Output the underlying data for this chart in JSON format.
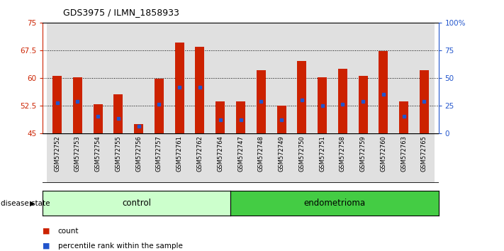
{
  "title": "GDS3975 / ILMN_1858933",
  "samples": [
    "GSM572752",
    "GSM572753",
    "GSM572754",
    "GSM572755",
    "GSM572756",
    "GSM572757",
    "GSM572761",
    "GSM572762",
    "GSM572764",
    "GSM572747",
    "GSM572748",
    "GSM572749",
    "GSM572750",
    "GSM572751",
    "GSM572758",
    "GSM572759",
    "GSM572760",
    "GSM572763",
    "GSM572765"
  ],
  "bar_values": [
    60.5,
    60.2,
    52.8,
    55.5,
    47.5,
    59.8,
    69.5,
    68.5,
    53.5,
    53.5,
    62.0,
    52.5,
    64.5,
    60.2,
    62.5,
    60.5,
    67.2,
    53.5,
    62.0
  ],
  "percentile_values": [
    53.2,
    53.5,
    49.5,
    49.0,
    46.8,
    52.8,
    57.5,
    57.5,
    48.5,
    48.5,
    53.5,
    48.5,
    54.0,
    52.5,
    52.8,
    53.5,
    55.5,
    49.5,
    53.5
  ],
  "control_count": 9,
  "ylim_left": [
    45,
    75
  ],
  "ylim_right": [
    0,
    100
  ],
  "yticks_left": [
    45,
    52.5,
    60,
    67.5,
    75
  ],
  "ytick_labels_left": [
    "45",
    "52.5",
    "60",
    "67.5",
    "75"
  ],
  "yticks_right": [
    0,
    25,
    50,
    75,
    100
  ],
  "ytick_labels_right": [
    "0",
    "25",
    "50",
    "75",
    "100%"
  ],
  "bar_color": "#cc2200",
  "marker_color": "#2255cc",
  "control_bg": "#ccffcc",
  "endometrioma_bg": "#44cc44",
  "tick_area_bg": "#cccccc",
  "hline_values": [
    52.5,
    60.0,
    67.5
  ],
  "legend_count_label": "count",
  "legend_pct_label": "percentile rank within the sample",
  "control_label": "control",
  "endometrioma_label": "endometrioma",
  "disease_state_label": "disease state"
}
